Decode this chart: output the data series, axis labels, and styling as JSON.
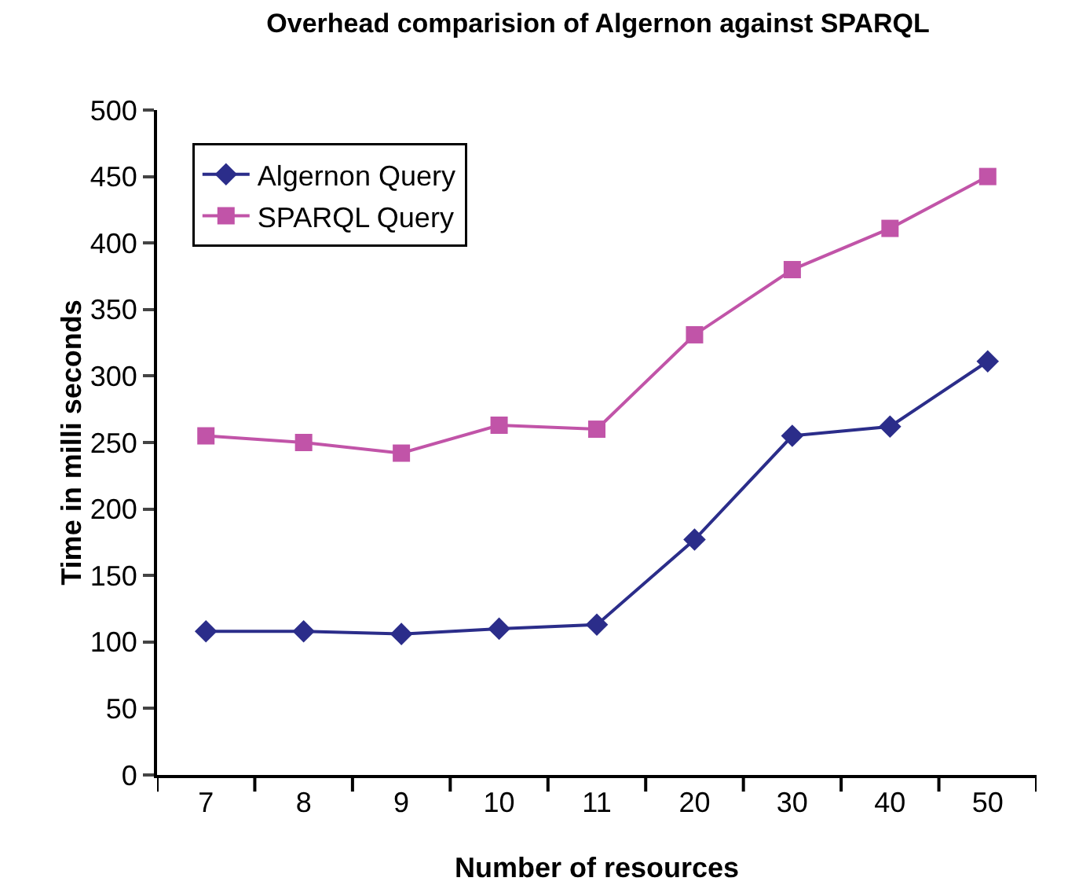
{
  "chart_data": {
    "type": "line",
    "title": "Overhead comparision of Algernon against SPARQL",
    "xlabel": "Number of resources",
    "ylabel": "Time in milli seconds",
    "categories": [
      "7",
      "8",
      "9",
      "10",
      "11",
      "20",
      "30",
      "40",
      "50"
    ],
    "ylim": [
      0,
      500
    ],
    "yticks": [
      0,
      50,
      100,
      150,
      200,
      250,
      300,
      350,
      400,
      450,
      500
    ],
    "grid": false,
    "legend": "top left",
    "line_style": "solid",
    "series": [
      {
        "name": "Algernon Query",
        "color": "#2b2d8a",
        "marker": "diamond",
        "values": [
          108,
          108,
          106,
          110,
          113,
          177,
          255,
          262,
          311
        ]
      },
      {
        "name": "SPARQL Query",
        "color": "#c154a8",
        "marker": "square",
        "values": [
          255,
          250,
          242,
          263,
          260,
          331,
          380,
          411,
          450
        ]
      }
    ]
  }
}
